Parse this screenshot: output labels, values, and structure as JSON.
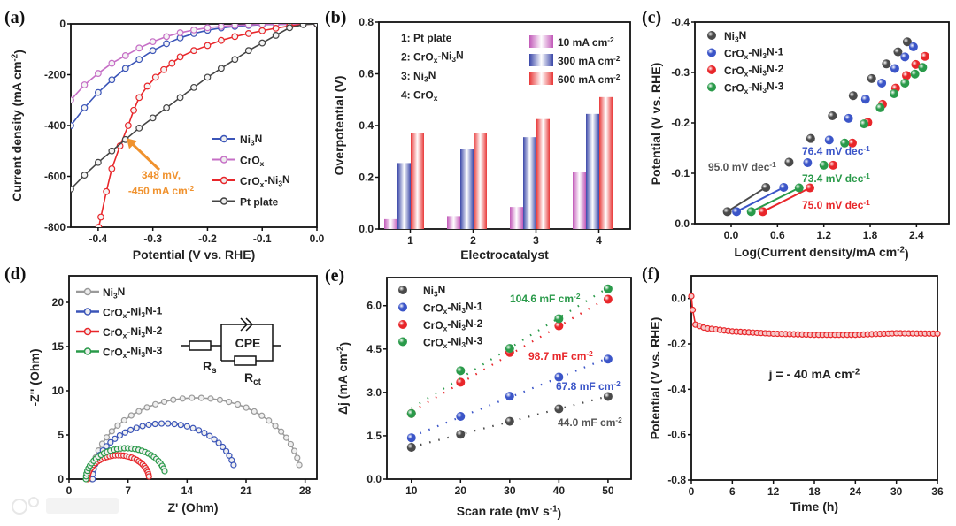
{
  "watermark": "大数跨境",
  "chart_data": [
    {
      "id": "a",
      "panel_label": "(a)",
      "type": "line",
      "xlabel": "Potential (V vs. RHE)",
      "ylabel": "Current density (mA cm^{-2})",
      "xlim": [
        -0.45,
        0
      ],
      "ylim": [
        -800,
        0
      ],
      "xticks": [
        -0.4,
        -0.3,
        -0.2,
        -0.1,
        0.0
      ],
      "xtick_labels": [
        "-0.4",
        "-0.3",
        "-0.2",
        "-0.1",
        "0.0"
      ],
      "yticks": [
        0,
        -200,
        -400,
        -600,
        -800
      ],
      "ytick_labels": [
        "0",
        "-200",
        "-400",
        "-600",
        "-800"
      ],
      "legend_position": "bottom-right",
      "series": [
        {
          "name": "Ni_{3}N",
          "color": "#3b55b8",
          "x": [
            -0.45,
            -0.425,
            -0.4,
            -0.375,
            -0.35,
            -0.325,
            -0.3,
            -0.275,
            -0.25,
            -0.225,
            -0.2,
            -0.175,
            -0.15,
            -0.125,
            -0.1,
            -0.075,
            -0.05,
            -0.025,
            0
          ],
          "y": [
            -400,
            -330,
            -270,
            -220,
            -175,
            -140,
            -105,
            -78,
            -55,
            -38,
            -25,
            -16,
            -10,
            -6,
            -3,
            -2,
            -1,
            0,
            0
          ]
        },
        {
          "name": "CrO_{x}",
          "color": "#c66fc6",
          "x": [
            -0.45,
            -0.425,
            -0.4,
            -0.375,
            -0.35,
            -0.325,
            -0.3,
            -0.275,
            -0.25,
            -0.225,
            -0.2,
            -0.175,
            -0.15,
            -0.125,
            -0.1,
            -0.075,
            -0.05,
            -0.025,
            0
          ],
          "y": [
            -300,
            -240,
            -195,
            -155,
            -125,
            -95,
            -70,
            -50,
            -35,
            -24,
            -15,
            -10,
            -6,
            -4,
            -2,
            -1,
            -1,
            0,
            0
          ]
        },
        {
          "name": "CrO_{x}-Ni_{3}N",
          "color": "#e8262a",
          "x": [
            -0.399,
            -0.395,
            -0.385,
            -0.375,
            -0.36,
            -0.345,
            -0.335,
            -0.325,
            -0.31,
            -0.295,
            -0.28,
            -0.265,
            -0.25,
            -0.225,
            -0.2,
            -0.175,
            -0.15,
            -0.125,
            -0.1,
            -0.075,
            -0.05,
            -0.025,
            0
          ],
          "y": [
            -800,
            -760,
            -660,
            -570,
            -480,
            -400,
            -340,
            -290,
            -245,
            -210,
            -180,
            -155,
            -130,
            -105,
            -85,
            -65,
            -50,
            -38,
            -27,
            -17,
            -8,
            -2,
            0
          ]
        },
        {
          "name": "Pt plate",
          "color": "#444444",
          "x": [
            -0.45,
            -0.425,
            -0.4,
            -0.375,
            -0.35,
            -0.325,
            -0.3,
            -0.275,
            -0.25,
            -0.225,
            -0.2,
            -0.175,
            -0.15,
            -0.125,
            -0.1,
            -0.075,
            -0.05,
            -0.025,
            0
          ],
          "y": [
            -650,
            -595,
            -545,
            -500,
            -455,
            -410,
            -370,
            -330,
            -290,
            -250,
            -210,
            -175,
            -140,
            -105,
            -75,
            -45,
            -15,
            -3,
            0
          ]
        }
      ],
      "annotations": [
        {
          "text": "348 mV,",
          "color": "#f0922e"
        },
        {
          "text": "-450 mA cm^{-2}",
          "color": "#f0922e"
        }
      ],
      "arrow_target": {
        "x": -0.348,
        "y": -450
      }
    },
    {
      "id": "b",
      "panel_label": "(b)",
      "type": "bar",
      "xlabel": "Electrocatalyst",
      "ylabel": "Overpotential (V)",
      "xlim": [
        0.5,
        4.5
      ],
      "ylim": [
        0,
        0.8
      ],
      "categories": [
        "1",
        "2",
        "3",
        "4"
      ],
      "yticks": [
        0,
        0.2,
        0.4,
        0.6,
        0.8
      ],
      "ytick_labels": [
        "0.0",
        "0.2",
        "0.4",
        "0.6",
        "0.8"
      ],
      "category_key": [
        "1: Pt plate",
        "2: CrO_{x}-Ni_{3}N",
        "3: Ni_{3}N",
        "4: CrO_{x}"
      ],
      "legend_position": "top-right",
      "series": [
        {
          "name": "10 mA cm^{-2}",
          "color": "#c158b8",
          "values": [
            0.038,
            0.05,
            0.085,
            0.22
          ]
        },
        {
          "name": "300 mA cm^{-2}",
          "color": "#3a47a8",
          "values": [
            0.255,
            0.31,
            0.355,
            0.445
          ]
        },
        {
          "name": "600 mA cm^{-2}",
          "color": "#e83838",
          "values": [
            0.37,
            0.37,
            0.425,
            0.51
          ]
        }
      ]
    },
    {
      "id": "c",
      "panel_label": "(c)",
      "type": "scatter",
      "xlabel": "Log(Current density/mA cm^{-2})",
      "ylabel": "Potential (V vs. RHE)",
      "xlim": [
        -0.47,
        2.82
      ],
      "ylim": [
        0,
        -0.4
      ],
      "xticks": [
        0,
        0.6,
        1.2,
        1.8,
        2.4
      ],
      "xtick_labels": [
        "0.0",
        "0.6",
        "1.2",
        "1.8",
        "2.4"
      ],
      "yticks": [
        0,
        -0.1,
        -0.2,
        -0.3,
        -0.4
      ],
      "ytick_labels": [
        "0.0",
        "-0.1",
        "-0.2",
        "-0.3",
        "-0.4"
      ],
      "legend_position": "top-left",
      "series": [
        {
          "name": "Ni_{3}N",
          "color": "#4a4a4a",
          "x": [
            -0.05,
            0.45,
            0.75,
            1.03,
            1.31,
            1.58,
            1.82,
            2.01,
            2.16,
            2.28
          ],
          "y": [
            -0.024,
            -0.072,
            -0.122,
            -0.169,
            -0.214,
            -0.254,
            -0.288,
            -0.317,
            -0.341,
            -0.361
          ],
          "tafel_slope": "95.0 mV dec^{-1}",
          "slope_color": "#555555"
        },
        {
          "name": "CrO_{x}-Ni_{3}N-1",
          "color": "#3b55c8",
          "x": [
            0.07,
            0.68,
            0.99,
            1.27,
            1.52,
            1.74,
            1.95,
            2.12,
            2.25,
            2.36
          ],
          "y": [
            -0.024,
            -0.072,
            -0.121,
            -0.166,
            -0.209,
            -0.247,
            -0.279,
            -0.308,
            -0.331,
            -0.351
          ],
          "tafel_slope": "76.4 mV dec^{-1}",
          "slope_color": "#3b55c8"
        },
        {
          "name": "CrO_{x}-Ni_{3}N-2",
          "color": "#e8262a",
          "x": [
            0.41,
            1.02,
            1.32,
            1.57,
            1.77,
            1.96,
            2.13,
            2.27,
            2.39,
            2.51
          ],
          "y": [
            -0.024,
            -0.071,
            -0.116,
            -0.16,
            -0.201,
            -0.237,
            -0.269,
            -0.294,
            -0.316,
            -0.332
          ],
          "tafel_slope": "75.0 mV dec^{-1}",
          "slope_color": "#e8262a"
        },
        {
          "name": "CrO_{x}-Ni_{3}N-3",
          "color": "#2a9a4a",
          "x": [
            0.26,
            0.88,
            1.2,
            1.47,
            1.72,
            1.93,
            2.11,
            2.25,
            2.38,
            2.48
          ],
          "y": [
            -0.024,
            -0.071,
            -0.116,
            -0.16,
            -0.198,
            -0.23,
            -0.258,
            -0.279,
            -0.297,
            -0.31
          ],
          "tafel_slope": "73.4 mV dec^{-1}",
          "slope_color": "#2a9a4a"
        }
      ]
    },
    {
      "id": "d",
      "panel_label": "(d)",
      "type": "line",
      "xlabel": "Z' (Ohm)",
      "ylabel": "-Z'' (Ohm)",
      "xlim": [
        0,
        29.4
      ],
      "ylim": [
        0,
        23
      ],
      "xticks": [
        0,
        7,
        14,
        21,
        28
      ],
      "xtick_labels": [
        "0",
        "7",
        "14",
        "21",
        "28"
      ],
      "yticks": [
        0,
        5,
        10,
        15,
        20
      ],
      "ytick_labels": [
        "0",
        "5",
        "10",
        "15",
        "20"
      ],
      "legend_position": "top-left",
      "series": [
        {
          "name": "Ni_{3}N",
          "color": "#9a9a9a",
          "rs_ohm": 2.7,
          "rct_ohm": 24.8,
          "peak_zimag": 9.2,
          "end_zimag": 1.6
        },
        {
          "name": "CrO_{x}-Ni_{3}N-1",
          "color": "#3b55b8",
          "rs_ohm": 2.8,
          "rct_ohm": 17.0,
          "peak_zimag": 6.3,
          "end_zimag": 1.6
        },
        {
          "name": "CrO_{x}-Ni_{3}N-2",
          "color": "#e8262a",
          "rs_ohm": 2.2,
          "rct_ohm": 7.3,
          "peak_zimag": 2.7,
          "end_zimag": 0.3
        },
        {
          "name": "CrO_{x}-Ni_{3}N-3",
          "color": "#2a9a4a",
          "rs_ohm": 2.0,
          "rct_ohm": 9.5,
          "peak_zimag": 3.5,
          "end_zimag": 0.9
        }
      ],
      "circuit": {
        "cpe": "CPE",
        "rs": "R_{s}",
        "rct": "R_{ct}"
      }
    },
    {
      "id": "e",
      "panel_label": "(e)",
      "type": "scatter",
      "xlabel": "Scan rate (mV s^{-1})",
      "ylabel": "Δj (mA cm^{-2})",
      "xlim": [
        5,
        54.7
      ],
      "ylim": [
        0,
        6.97
      ],
      "xticks": [
        10,
        20,
        30,
        40,
        50
      ],
      "xtick_labels": [
        "10",
        "20",
        "30",
        "40",
        "50"
      ],
      "yticks": [
        0,
        1.5,
        3,
        4.5,
        6
      ],
      "ytick_labels": [
        "0.0",
        "1.5",
        "3.0",
        "4.5",
        "6.0"
      ],
      "legend_position": "top-left",
      "series": [
        {
          "name": "Ni_{3}N",
          "color": "#4a4a4a",
          "x": [
            10,
            20,
            30,
            40,
            50
          ],
          "y": [
            1.1,
            1.55,
            2.0,
            2.43,
            2.86
          ],
          "capacitance": "44.0 mF cm^{-2}",
          "label_color": "#555555"
        },
        {
          "name": "CrO_{x}-Ni_{3}N-1",
          "color": "#3b55c8",
          "x": [
            10,
            20,
            30,
            40,
            50
          ],
          "y": [
            1.43,
            2.17,
            2.87,
            3.53,
            4.15
          ],
          "capacitance": "67.8 mF cm^{-2}",
          "label_color": "#3b55c8"
        },
        {
          "name": "CrO_{x}-Ni_{3}N-2",
          "color": "#e8262a",
          "x": [
            10,
            20,
            30,
            40,
            50
          ],
          "y": [
            2.27,
            3.35,
            4.38,
            5.3,
            6.22
          ],
          "capacitance": "98.7 mF cm^{-2}",
          "label_color": "#e8262a"
        },
        {
          "name": "CrO_{x}-Ni_{3}N-3",
          "color": "#2a9a4a",
          "x": [
            10,
            20,
            30,
            40,
            50
          ],
          "y": [
            2.27,
            3.75,
            4.52,
            5.55,
            6.58
          ],
          "capacitance": "104.6 mF cm^{-2}",
          "label_color": "#2a9a4a"
        }
      ]
    },
    {
      "id": "f",
      "panel_label": "(f)",
      "type": "line",
      "xlabel": "Time (h)",
      "ylabel": "Potential (V vs. RHE)",
      "xlim": [
        0,
        36
      ],
      "ylim": [
        -0.8,
        0.1
      ],
      "xticks": [
        0,
        6,
        12,
        18,
        24,
        30,
        36
      ],
      "xtick_labels": [
        "0",
        "6",
        "12",
        "18",
        "24",
        "30",
        "36"
      ],
      "yticks": [
        0,
        -0.2,
        -0.4,
        -0.6,
        -0.8
      ],
      "ytick_labels": [
        "0.0",
        "-0.2",
        "-0.4",
        "-0.6",
        "-0.8"
      ],
      "series": [
        {
          "name": "CrO_{x}-Ni_{3}N",
          "color": "#e8262a",
          "x": [
            0,
            0.2,
            0.6,
            2,
            6,
            12,
            18,
            24,
            30,
            36
          ],
          "y": [
            0.01,
            -0.05,
            -0.115,
            -0.13,
            -0.145,
            -0.155,
            -0.16,
            -0.16,
            -0.153,
            -0.155
          ]
        }
      ],
      "annotation": "j = - 40 mA cm^{-2}"
    }
  ]
}
